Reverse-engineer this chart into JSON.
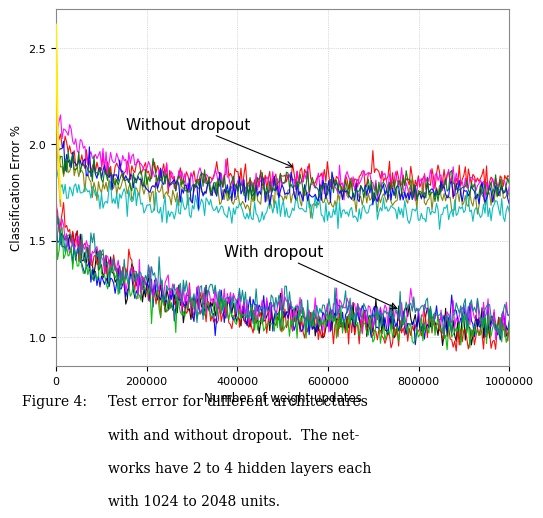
{
  "xlabel": "Number of weight updates",
  "ylabel": "Classification Error %",
  "xlim": [
    0,
    1000000
  ],
  "ylim": [
    0.85,
    2.7
  ],
  "yticks": [
    1.0,
    1.5,
    2.0,
    2.5
  ],
  "xticks": [
    0,
    200000,
    400000,
    600000,
    800000,
    1000000
  ],
  "n_steps": 300,
  "without_dropout_colors": [
    "#ff0000",
    "#ff00ff",
    "#808000",
    "#00bbbb",
    "#0000ff",
    "#007700"
  ],
  "with_dropout_colors": [
    "#000000",
    "#ff0000",
    "#0000ff",
    "#ff00ff",
    "#00bb00",
    "#008888"
  ],
  "without_dropout_final": [
    1.82,
    1.8,
    1.72,
    1.65,
    1.75,
    1.78
  ],
  "with_dropout_final": [
    1.06,
    1.02,
    1.08,
    1.1,
    1.04,
    1.12
  ],
  "without_dropout_start": [
    2.0,
    2.1,
    1.9,
    1.82,
    2.0,
    1.95
  ],
  "with_dropout_start": [
    1.55,
    1.65,
    1.5,
    1.6,
    1.52,
    1.58
  ],
  "annotation_without": "Without dropout",
  "annotation_with": "With dropout",
  "background_color": "#ffffff",
  "grid_color": "#999999",
  "line_width": 0.8,
  "caption_label": "Figure 4:",
  "caption_lines": [
    "Test error for different architectures",
    "with and without dropout.  The net-",
    "works have 2 to 4 hidden layers each",
    "with 1024 to 2048 units."
  ]
}
